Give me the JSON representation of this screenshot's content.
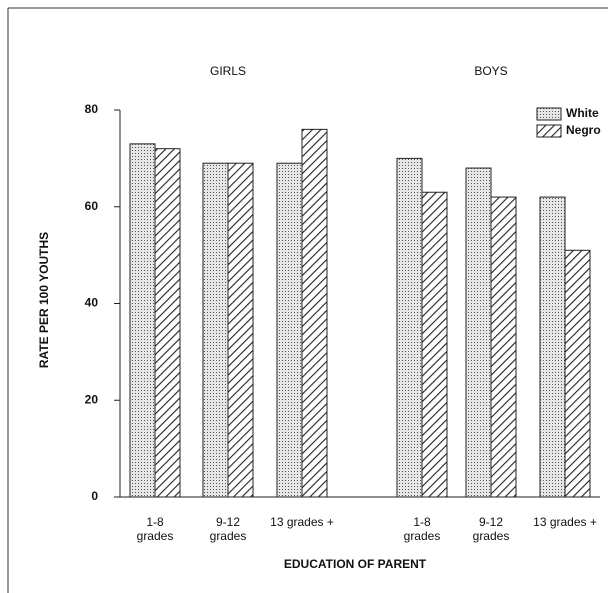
{
  "chart_data": {
    "type": "bar",
    "y_label": "RATE PER 100 YOUTHS",
    "x_label": "EDUCATION OF PARENT",
    "ylim": [
      0,
      80
    ],
    "yticks": [
      0,
      20,
      40,
      60,
      80
    ],
    "groups": [
      {
        "title": "GIRLS",
        "categories": [
          [
            "1-8",
            "grades"
          ],
          [
            "9-12",
            "grades"
          ],
          [
            "13 grades +"
          ]
        ]
      },
      {
        "title": "BOYS",
        "categories": [
          [
            "1-8",
            "grades"
          ],
          [
            "9-12",
            "grades"
          ],
          [
            "13 grades +"
          ]
        ]
      }
    ],
    "series": [
      {
        "name": "White",
        "pattern": "dots",
        "color": "#222222",
        "values": [
          73,
          69,
          69,
          70,
          68,
          62
        ]
      },
      {
        "name": "Negro",
        "pattern": "hatch",
        "color": "#222222",
        "values": [
          72,
          69,
          76,
          63,
          62,
          51
        ]
      }
    ]
  }
}
